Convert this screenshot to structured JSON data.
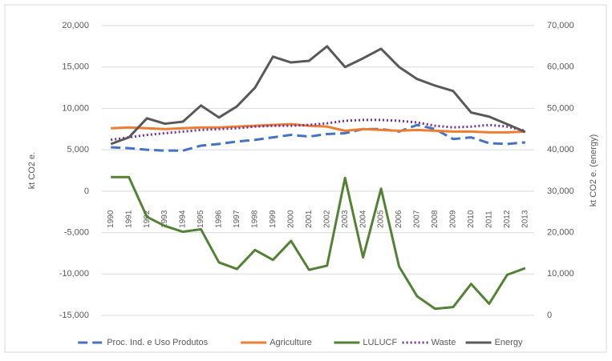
{
  "chart_data": {
    "type": "line",
    "y_label": "kt CO2 e.",
    "y2_label": "kt CO2 e. (energy)",
    "categories": [
      "1990",
      "1991",
      "1992",
      "1993",
      "1994",
      "1995",
      "1996",
      "1997",
      "1998",
      "1999",
      "2000",
      "2001",
      "2002",
      "2003",
      "2004",
      "2005",
      "2006",
      "2007",
      "2008",
      "2009",
      "2010",
      "2011",
      "2012",
      "2013"
    ],
    "ylim": [
      -15000,
      20000
    ],
    "yticks": [
      {
        "value": -15000,
        "label": "-15,000"
      },
      {
        "value": -10000,
        "label": "-10,000"
      },
      {
        "value": -5000,
        "label": "-5,000"
      },
      0,
      {
        "value": 5000,
        "label": "5,000"
      },
      {
        "value": 10000,
        "label": "10,000"
      },
      {
        "value": 15000,
        "label": "15,000"
      },
      {
        "value": 20000,
        "label": "20,000"
      }
    ],
    "y2lim": [
      0,
      70000
    ],
    "y2ticks": [
      0,
      {
        "value": 10000,
        "label": "10,000"
      },
      {
        "value": 20000,
        "label": "20,000"
      },
      {
        "value": 30000,
        "label": "30,000"
      },
      {
        "value": 40000,
        "label": "40,000"
      },
      {
        "value": 50000,
        "label": "50,000"
      },
      {
        "value": 60000,
        "label": "60,000"
      },
      {
        "value": 70000,
        "label": "70,000"
      }
    ],
    "grid": true,
    "legend": "bottom",
    "series": [
      {
        "name": "Proc. Ind. e Uso Produtos",
        "color": "#4472c4",
        "style": "dashed",
        "values": [
          5300,
          5200,
          5000,
          4900,
          4900,
          5500,
          5700,
          6000,
          6200,
          6500,
          6800,
          6600,
          6900,
          7000,
          7500,
          7500,
          7200,
          8000,
          7500,
          6300,
          6500,
          5800,
          5700,
          5900
        ]
      },
      {
        "name": "Agriculture",
        "color": "#ed7d31",
        "style": "solid",
        "values": [
          7600,
          7700,
          7600,
          7500,
          7600,
          7700,
          7700,
          7800,
          7900,
          8000,
          8100,
          7900,
          7800,
          7300,
          7500,
          7400,
          7300,
          7400,
          7300,
          7200,
          7200,
          7100,
          7100,
          7200
        ]
      },
      {
        "name": "LULUCF",
        "color": "#548235",
        "style": "solid",
        "values": [
          1700,
          1700,
          -3100,
          -4200,
          -4900,
          -4600,
          -8600,
          -9400,
          -7100,
          -8300,
          -6000,
          -9500,
          -9000,
          1600,
          -8000,
          300,
          -9100,
          -12700,
          -14200,
          -14000,
          -11200,
          -13600,
          -10100,
          -9300
        ]
      },
      {
        "name": "Waste",
        "color": "#7030a0",
        "style": "dotted",
        "values": [
          6200,
          6500,
          6800,
          7000,
          7200,
          7400,
          7500,
          7600,
          7800,
          7900,
          7900,
          8000,
          8200,
          8500,
          8600,
          8600,
          8500,
          8300,
          7900,
          7700,
          7800,
          8000,
          7800,
          7300
        ]
      },
      {
        "name": "Energy",
        "color": "#595959",
        "style": "solid",
        "axis": "y2",
        "values": [
          41400,
          43000,
          47600,
          46300,
          46800,
          50700,
          47800,
          50500,
          55000,
          62500,
          61100,
          61500,
          65000,
          60000,
          62100,
          64400,
          60000,
          57100,
          55500,
          54200,
          49000,
          48000,
          46200,
          44300
        ]
      }
    ]
  }
}
